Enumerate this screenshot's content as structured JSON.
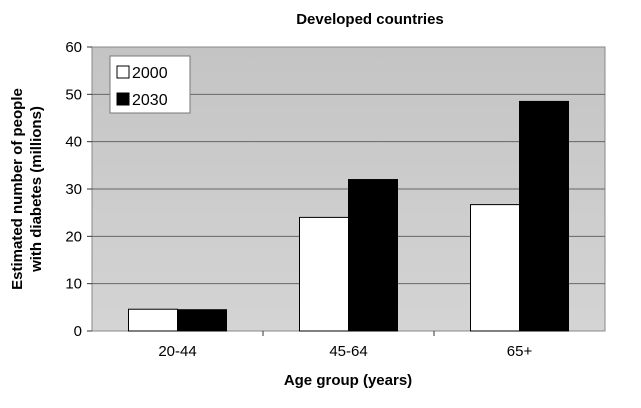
{
  "chart_data": {
    "type": "bar",
    "title": "Developed countries",
    "xlabel": "Age group (years)",
    "ylabel": [
      "Estimated number of people",
      "with diabetes (millions)"
    ],
    "categories": [
      "20-44",
      "45-64",
      "65+"
    ],
    "series": [
      {
        "name": "2000",
        "color": "#ffffff",
        "values": [
          4.6,
          24.0,
          26.7
        ]
      },
      {
        "name": "2030",
        "color": "#000000",
        "values": [
          4.5,
          32.0,
          48.5
        ]
      }
    ],
    "ylim": [
      0,
      60
    ],
    "yticks": [
      0,
      10,
      20,
      30,
      40,
      50,
      60
    ],
    "grid": true,
    "legend_position": "top-left"
  }
}
